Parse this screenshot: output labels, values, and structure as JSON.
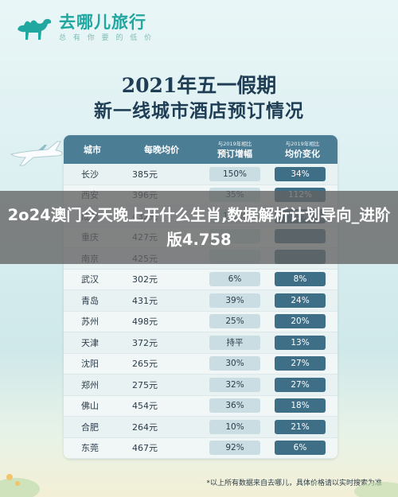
{
  "brand": {
    "name": "去哪儿旅行",
    "slogan": "总 有 你 要 的 低 价",
    "color": "#1fa7a0"
  },
  "title": {
    "line1": "2021年五一假期",
    "line2": "新一线城市酒店预订情况"
  },
  "table": {
    "headers": {
      "city": "城市",
      "price": "每晚均价",
      "booking_note": "与2019年相比",
      "booking": "预订增幅",
      "change_note": "与2019年相比",
      "change": "均价变化"
    },
    "rows": [
      {
        "city": "长沙",
        "price": "385元",
        "booking": "150%",
        "change": "34%"
      },
      {
        "city": "西安",
        "price": "396元",
        "booking": "35%",
        "change": "112%"
      },
      {
        "city": "成都",
        "price": "432元",
        "booking": "138%",
        "change": "23%"
      },
      {
        "city": "重庆",
        "price": "427元",
        "booking": "",
        "change": ""
      },
      {
        "city": "南京",
        "price": "425元",
        "booking": "",
        "change": ""
      },
      {
        "city": "武汉",
        "price": "302元",
        "booking": "6%",
        "change": "8%"
      },
      {
        "city": "青岛",
        "price": "431元",
        "booking": "39%",
        "change": "24%"
      },
      {
        "city": "苏州",
        "price": "498元",
        "booking": "25%",
        "change": "20%"
      },
      {
        "city": "天津",
        "price": "372元",
        "booking": "持平",
        "change": "13%"
      },
      {
        "city": "沈阳",
        "price": "265元",
        "booking": "30%",
        "change": "27%"
      },
      {
        "city": "郑州",
        "price": "275元",
        "booking": "32%",
        "change": "27%"
      },
      {
        "city": "佛山",
        "price": "454元",
        "booking": "36%",
        "change": "18%"
      },
      {
        "city": "合肥",
        "price": "264元",
        "booking": "10%",
        "change": "21%"
      },
      {
        "city": "东莞",
        "price": "467元",
        "booking": "92%",
        "change": "6%"
      }
    ]
  },
  "footnote": "*以上所有数据来自去哪儿，具体价格请以实时搜索为准",
  "overlay": {
    "text": "2o24澳门今天晚上开什么生肖,数据解析计划导向_进阶版4.758"
  }
}
